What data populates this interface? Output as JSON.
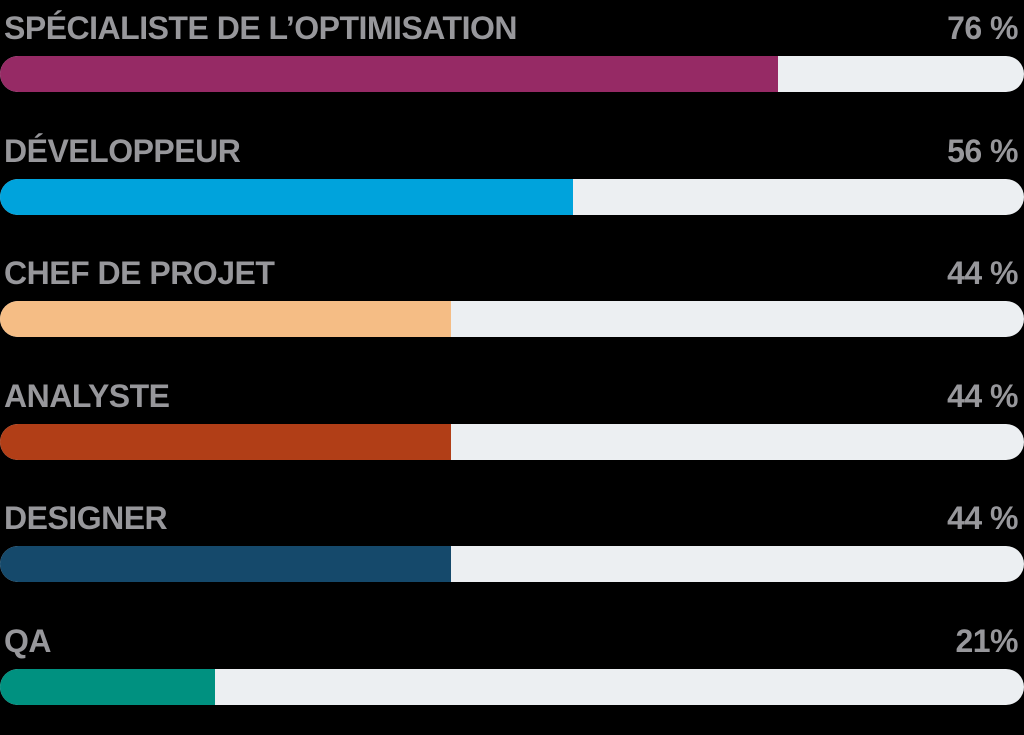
{
  "chart_data": {
    "type": "bar",
    "orientation": "horizontal",
    "title": "",
    "xlabel": "",
    "ylabel": "",
    "unit": "%",
    "xlim": [
      0,
      100
    ],
    "grid": false,
    "legend": false,
    "categories": [
      "SPÉCIALISTE DE L’OPTIMISATION",
      "DÉVELOPPEUR",
      "CHEF DE PROJET",
      "ANALYSTE",
      "DESIGNER",
      "QA"
    ],
    "values": [
      76,
      56,
      44,
      44,
      44,
      21
    ],
    "value_labels": [
      "76 %",
      "56 %",
      "44 %",
      "44 %",
      "44 %",
      "21%"
    ],
    "bar_colors": [
      "#962a65",
      "#00a3dc",
      "#f5bd85",
      "#b13e17",
      "#15496b",
      "#009180"
    ],
    "track_color": "#eceff2",
    "label_color": "#97979b",
    "background_color": "#000000"
  },
  "rows": [
    {
      "label": "SPÉCIALISTE DE L’OPTIMISATION",
      "percent_label": "76 %",
      "value": 76,
      "color": "#962a65"
    },
    {
      "label": "DÉVELOPPEUR",
      "percent_label": "56 %",
      "value": 56,
      "color": "#00a3dc"
    },
    {
      "label": "CHEF DE PROJET",
      "percent_label": "44 %",
      "value": 44,
      "color": "#f5bd85"
    },
    {
      "label": "ANALYSTE",
      "percent_label": "44 %",
      "value": 44,
      "color": "#b13e17"
    },
    {
      "label": "DESIGNER",
      "percent_label": "44 %",
      "value": 44,
      "color": "#15496b"
    },
    {
      "label": "QA",
      "percent_label": "21%",
      "value": 21,
      "color": "#009180"
    }
  ]
}
